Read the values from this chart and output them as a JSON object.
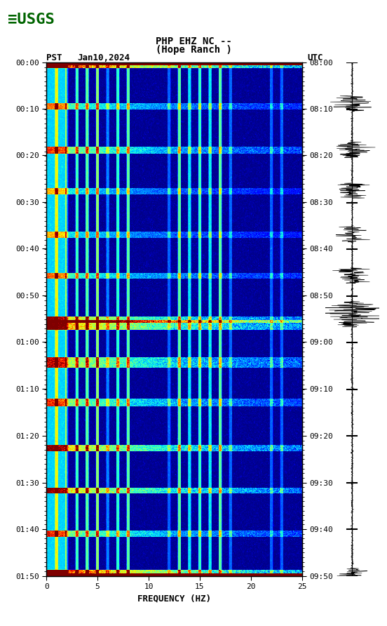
{
  "title_line1": "PHP EHZ NC --",
  "title_line2": "(Hope Ranch )",
  "date_label": "Jan10,2024",
  "left_tz": "PST",
  "right_tz": "UTC",
  "freq_min": 0,
  "freq_max": 25,
  "freq_ticks": [
    0,
    5,
    10,
    15,
    20,
    25
  ],
  "freq_label": "FREQUENCY (HZ)",
  "time_labels_left": [
    "00:00",
    "00:10",
    "00:20",
    "00:30",
    "00:40",
    "00:50",
    "01:00",
    "01:10",
    "01:20",
    "01:30",
    "01:40",
    "01:50"
  ],
  "time_labels_right": [
    "08:00",
    "08:10",
    "08:20",
    "08:30",
    "08:40",
    "08:50",
    "09:00",
    "09:10",
    "09:20",
    "09:30",
    "09:40",
    "09:50"
  ],
  "n_time_steps": 720,
  "n_freq_bins": 500,
  "background_color": "#ffffff",
  "usgs_logo_color": "#006400",
  "spectrogram_cmap": "jet",
  "fig_width": 5.52,
  "fig_height": 8.92,
  "dpi": 100
}
